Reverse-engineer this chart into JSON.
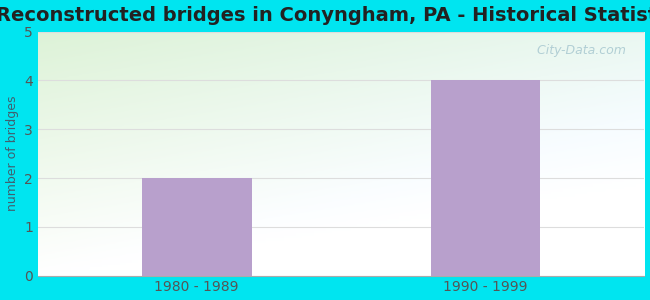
{
  "title": "Reconstructed bridges in Conyngham, PA - Historical Statistics",
  "categories": [
    "1980 - 1989",
    "1990 - 1999"
  ],
  "values": [
    2,
    4
  ],
  "bar_color": "#b8a0cc",
  "ylabel": "number of bridges",
  "ylim": [
    0,
    5
  ],
  "yticks": [
    0,
    1,
    2,
    3,
    4,
    5
  ],
  "background_outer": "#00e5f0",
  "background_plot_topleft": "#f0f8f0",
  "background_plot_topright": "#f8f8fc",
  "background_plot_bottomleft": "#c8ecc8",
  "background_plot_bottomright": "#e8f4e8",
  "title_fontsize": 14,
  "ylabel_fontsize": 9,
  "tick_label_fontsize": 10,
  "watermark": "  City-Data.com",
  "ylabel_color": "#406070",
  "tick_color": "#555555"
}
